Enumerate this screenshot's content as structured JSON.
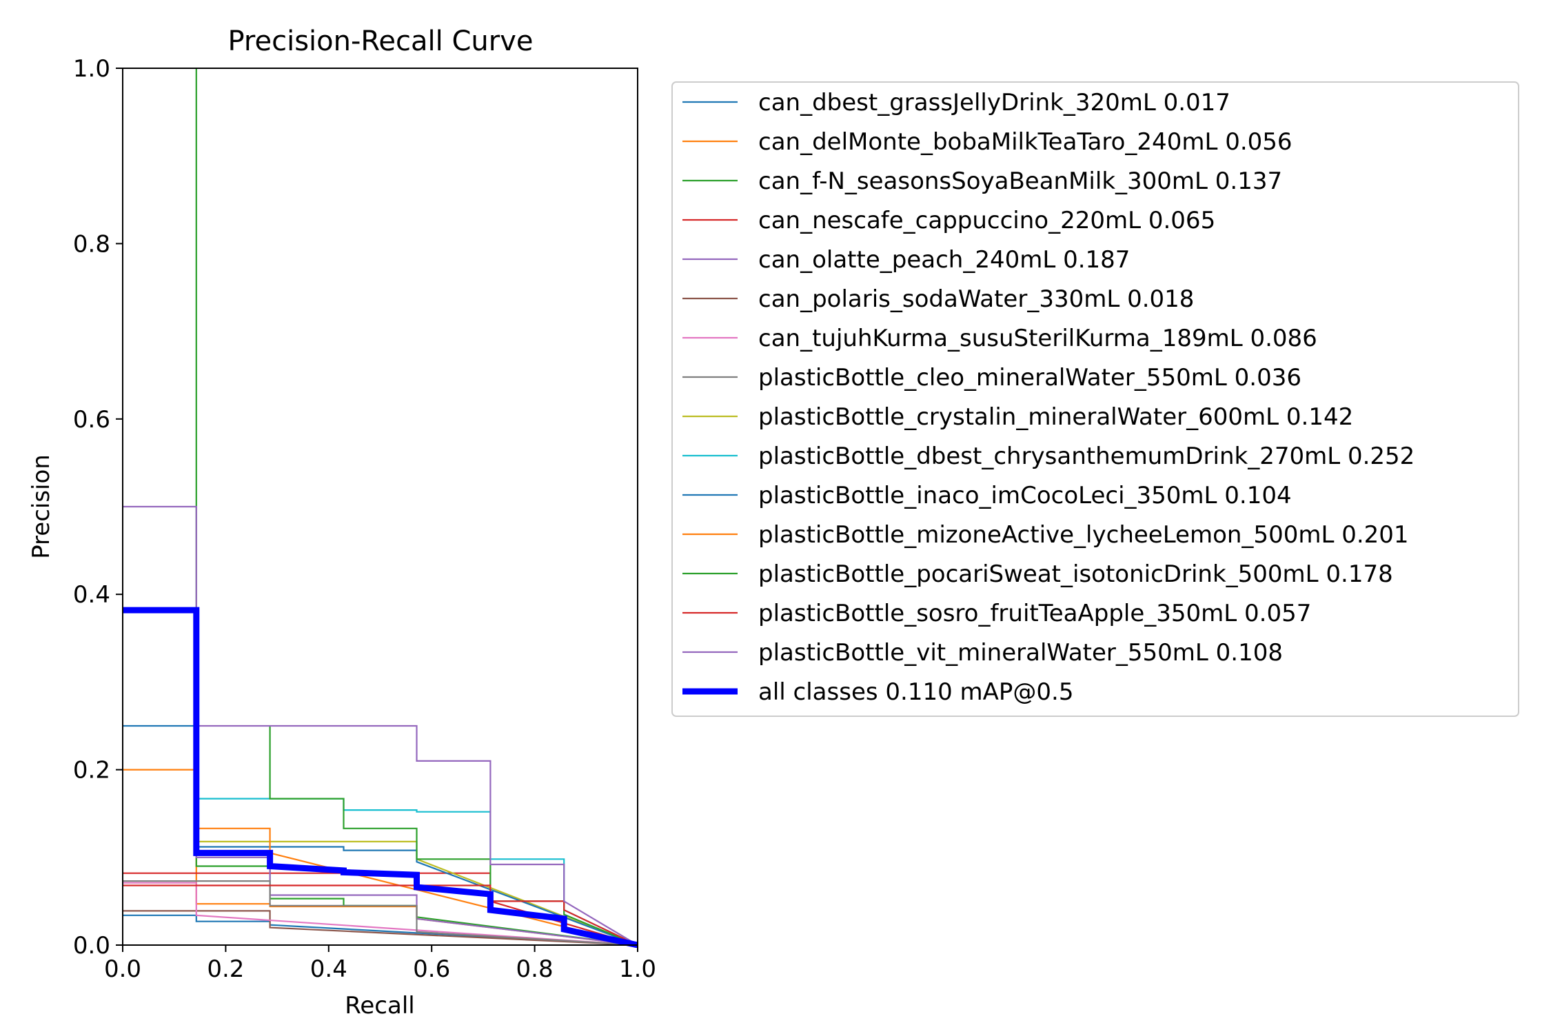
{
  "chart_data": {
    "type": "line",
    "title": "Precision-Recall Curve",
    "xlabel": "Recall",
    "ylabel": "Precision",
    "xlim": [
      0,
      1
    ],
    "ylim": [
      0,
      1
    ],
    "xticks": [
      "0.0",
      "0.2",
      "0.4",
      "0.6",
      "0.8",
      "1.0"
    ],
    "yticks": [
      "0.0",
      "0.2",
      "0.4",
      "0.6",
      "0.8",
      "1.0"
    ],
    "grid": false,
    "legend_position": "right, outside plot",
    "series": [
      {
        "name": "can_dbest_grassJellyDrink_320mL 0.017",
        "color": "#1f77b4",
        "x": [
          0,
          0.143,
          0.143,
          0.286,
          0.286,
          1.0
        ],
        "y": [
          0.034,
          0.034,
          0.027,
          0.027,
          0.023,
          0.0
        ]
      },
      {
        "name": "can_delMonte_bobaMilkTeaTaro_240mL 0.056",
        "color": "#ff7f0e",
        "x": [
          0,
          0.143,
          0.143,
          0.286,
          0.286,
          0.571,
          0.571,
          1.0
        ],
        "y": [
          0.2,
          0.2,
          0.047,
          0.047,
          0.044,
          0.044,
          0.03,
          0.0
        ]
      },
      {
        "name": "can_f-N_seasonsSoyaBeanMilk_300mL 0.137",
        "color": "#2ca02c",
        "x": [
          0.143,
          0.143,
          0.286,
          0.286,
          0.429,
          0.429,
          0.571,
          0.571,
          1.0
        ],
        "y": [
          1.0,
          0.09,
          0.09,
          0.053,
          0.053,
          0.045,
          0.045,
          0.032,
          0.0
        ]
      },
      {
        "name": "can_nescafe_cappuccino_220mL 0.065",
        "color": "#d62728",
        "x": [
          0,
          0.714,
          0.714,
          1.0
        ],
        "y": [
          0.082,
          0.082,
          0.05,
          0.0
        ]
      },
      {
        "name": "can_olatte_peach_240mL 0.187",
        "color": "#9467bd",
        "x": [
          0,
          0.143,
          0.143,
          0.286,
          0.286,
          0.571,
          0.571,
          1.0
        ],
        "y": [
          0.5,
          0.5,
          0.1,
          0.1,
          0.057,
          0.057,
          0.03,
          0.0
        ]
      },
      {
        "name": "can_polaris_sodaWater_330mL 0.018",
        "color": "#8c564b",
        "x": [
          0,
          0.286,
          0.286,
          1.0
        ],
        "y": [
          0.039,
          0.039,
          0.02,
          0.0
        ]
      },
      {
        "name": "can_tujuhKurma_susuSterilKurma_189mL 0.086",
        "color": "#e377c2",
        "x": [
          0,
          0.143,
          0.143,
          1.0
        ],
        "y": [
          0.071,
          0.071,
          0.034,
          0.0
        ]
      },
      {
        "name": "plasticBottle_cleo_mineralWater_550mL 0.036",
        "color": "#7f7f7f",
        "x": [
          0,
          0.286,
          0.286,
          0.571,
          0.571,
          1.0
        ],
        "y": [
          0.073,
          0.073,
          0.045,
          0.045,
          0.015,
          0.0
        ]
      },
      {
        "name": "plasticBottle_crystalin_mineralWater_600mL 0.142",
        "color": "#bcbd22",
        "x": [
          0.143,
          0.571,
          0.571,
          1.0
        ],
        "y": [
          0.118,
          0.118,
          0.098,
          0.0
        ]
      },
      {
        "name": "plasticBottle_dbest_chrysanthemumDrink_270mL 0.252",
        "color": "#17becf",
        "x": [
          0.143,
          0.429,
          0.429,
          0.571,
          0.571,
          0.714,
          0.714,
          0.857,
          0.857,
          1.0
        ],
        "y": [
          0.167,
          0.167,
          0.154,
          0.154,
          0.152,
          0.152,
          0.098,
          0.098,
          0.04,
          0.0
        ]
      },
      {
        "name": "plasticBottle_inaco_imCocoLeci_350mL 0.104",
        "color": "#1f77b4",
        "x": [
          0,
          0.143,
          0.143,
          0.429,
          0.429,
          0.571,
          0.571,
          1.0
        ],
        "y": [
          0.25,
          0.25,
          0.112,
          0.112,
          0.108,
          0.108,
          0.095,
          0.0
        ]
      },
      {
        "name": "plasticBottle_mizoneActive_lycheeLemon_500mL 0.201",
        "color": "#ff7f0e",
        "x": [
          0.143,
          0.286,
          0.286,
          1.0
        ],
        "y": [
          0.133,
          0.133,
          0.105,
          0.0
        ]
      },
      {
        "name": "plasticBottle_pocariSweat_isotonicDrink_500mL 0.178",
        "color": "#2ca02c",
        "x": [
          0.286,
          0.286,
          0.429,
          0.429,
          0.571,
          0.571,
          0.714,
          0.714,
          0.857,
          0.857,
          1.0
        ],
        "y": [
          0.25,
          0.167,
          0.167,
          0.133,
          0.133,
          0.098,
          0.098,
          0.05,
          0.05,
          0.035,
          0.0
        ]
      },
      {
        "name": "plasticBottle_sosro_fruitTeaApple_350mL 0.057",
        "color": "#d62728",
        "x": [
          0,
          0.714,
          0.714,
          0.857,
          0.857,
          1.0
        ],
        "y": [
          0.068,
          0.068,
          0.05,
          0.05,
          0.04,
          0.0
        ]
      },
      {
        "name": "plasticBottle_vit_mineralWater_550mL 0.108",
        "color": "#9467bd",
        "x": [
          0.143,
          0.571,
          0.571,
          0.714,
          0.714,
          0.857,
          0.857,
          1.0
        ],
        "y": [
          0.25,
          0.25,
          0.21,
          0.21,
          0.092,
          0.092,
          0.05,
          0.0
        ]
      },
      {
        "name": "all classes 0.110 mAP@0.5",
        "color": "#0000ff",
        "bold": true,
        "x": [
          0,
          0.143,
          0.143,
          0.286,
          0.286,
          0.429,
          0.429,
          0.571,
          0.571,
          0.714,
          0.714,
          0.857,
          0.857,
          1.0
        ],
        "y": [
          0.382,
          0.382,
          0.105,
          0.105,
          0.09,
          0.085,
          0.083,
          0.08,
          0.066,
          0.058,
          0.04,
          0.03,
          0.018,
          0.0
        ]
      }
    ]
  }
}
